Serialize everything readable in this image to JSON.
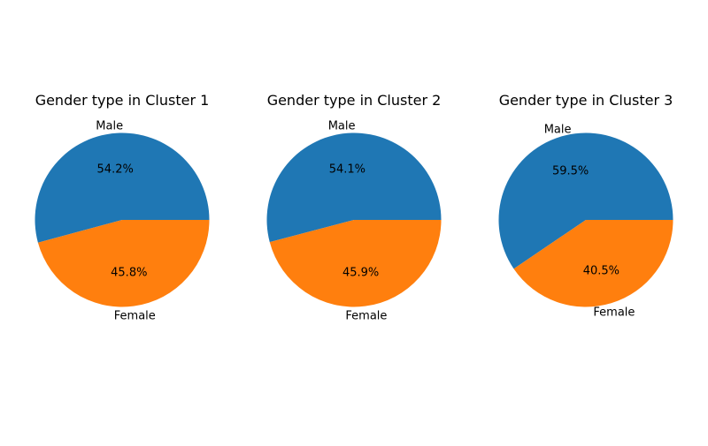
{
  "chart_data": [
    {
      "type": "pie",
      "title": "Gender type in Cluster 1",
      "categories": [
        "Male",
        "Female"
      ],
      "values": [
        54.2,
        45.8
      ],
      "value_labels": [
        "54.2%",
        "45.8%"
      ],
      "colors": [
        "#1f77b4",
        "#ff7f0e"
      ]
    },
    {
      "type": "pie",
      "title": "Gender type in Cluster 2",
      "categories": [
        "Male",
        "Female"
      ],
      "values": [
        54.1,
        45.9
      ],
      "value_labels": [
        "54.1%",
        "45.9%"
      ],
      "colors": [
        "#1f77b4",
        "#ff7f0e"
      ]
    },
    {
      "type": "pie",
      "title": "Gender type in Cluster 3",
      "categories": [
        "Male",
        "Female"
      ],
      "values": [
        59.5,
        40.5
      ],
      "value_labels": [
        "59.5%",
        "40.5%"
      ],
      "colors": [
        "#1f77b4",
        "#ff7f0e"
      ]
    }
  ]
}
